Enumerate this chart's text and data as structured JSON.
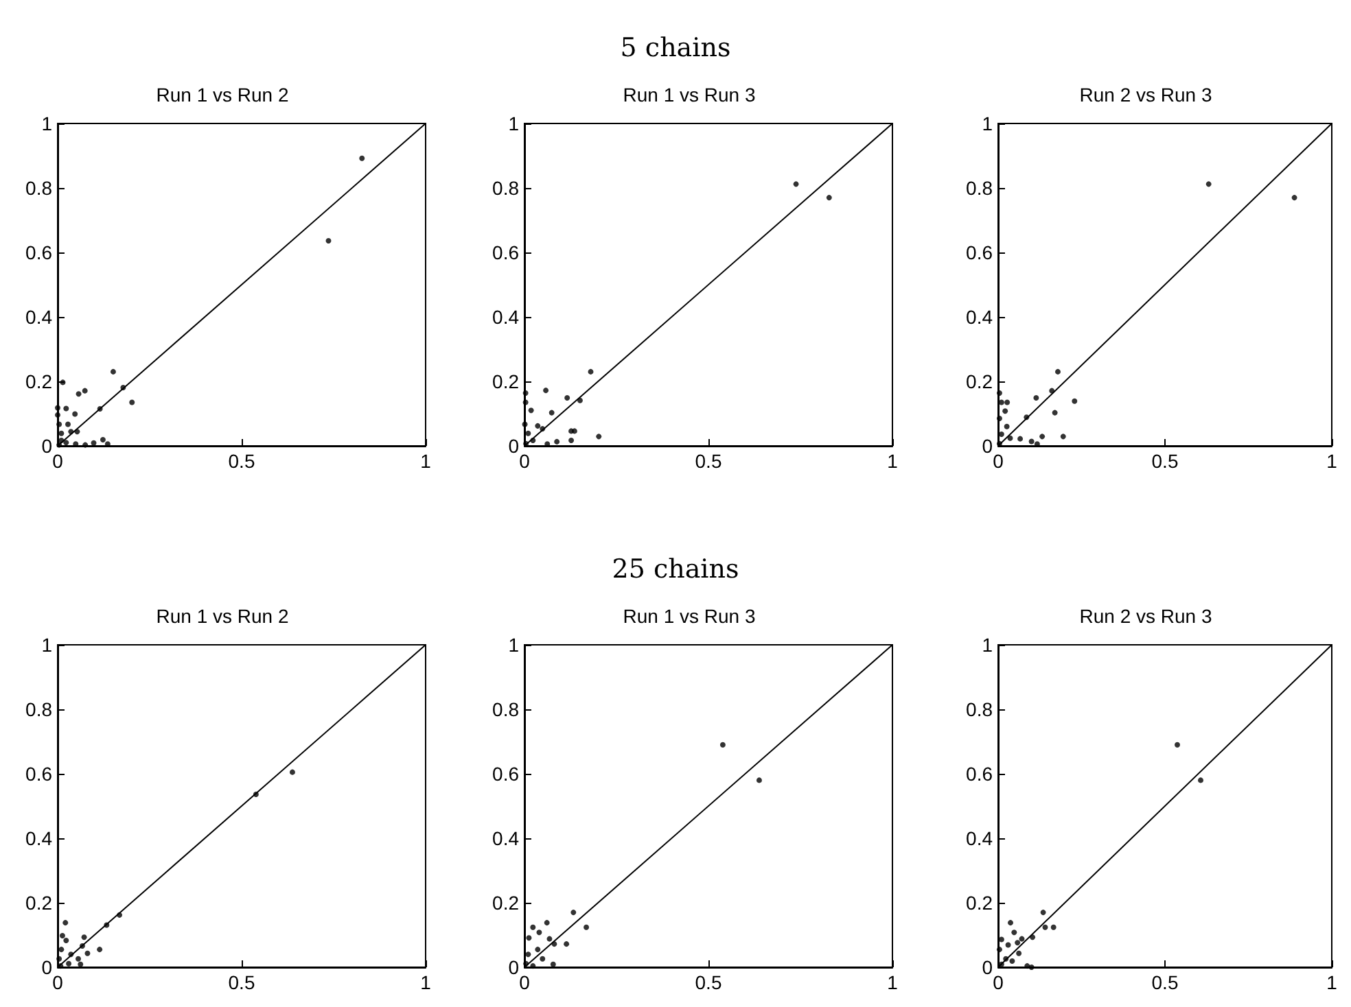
{
  "chart_data": [
    {
      "type": "scatter",
      "title": "Run 1 vs Run 2",
      "annotations": [
        "5 chains"
      ],
      "xlim": [
        0,
        1
      ],
      "xticks": [
        0,
        0.5,
        1
      ],
      "ylim": [
        0,
        1
      ],
      "yticks": [
        0,
        0.2,
        0.4,
        0.6,
        0.8,
        1
      ],
      "marker": "circle",
      "series": [
        {
          "color": "#000000",
          "x": [
            0.827,
            0.736,
            0.151,
            0.178,
            0.202,
            0.115,
            0.014,
            0.057,
            0.074,
            0.023,
            0.047,
            0.028,
            0.053,
            0.036,
            0,
            0,
            0.004,
            0.01,
            0.023,
            0.049,
            0.075,
            0.098,
            0.123,
            0.136,
            0.01,
            0.004
          ],
          "values": [
            0.892,
            0.636,
            0.23,
            0.181,
            0.135,
            0.115,
            0.197,
            0.161,
            0.171,
            0.116,
            0.099,
            0.067,
            0.044,
            0.044,
            0.118,
            0.096,
            0.067,
            0.039,
            0.01,
            0.006,
            0.003,
            0.009,
            0.019,
            0.006,
            0.017,
            0.003
          ]
        },
        {
          "type": "line",
          "color": "#000000",
          "marker": "none",
          "x": [
            0,
            1
          ],
          "values": [
            0,
            1
          ]
        }
      ]
    },
    {
      "type": "scatter",
      "title": "Run 1 vs Run 3",
      "xlim": [
        0,
        1
      ],
      "xticks": [
        0,
        0.5,
        1
      ],
      "ylim": [
        0,
        1
      ],
      "yticks": [
        0,
        0.2,
        0.4,
        0.6,
        0.8,
        1
      ],
      "marker": "circle",
      "series": [
        {
          "color": "#000000",
          "x": [
            0.738,
            0.828,
            0.18,
            0.058,
            0.116,
            0.151,
            0.074,
            0.202,
            0.003,
            0.003,
            0.018,
            0.036,
            0.049,
            0.127,
            0.136,
            0.127,
            0.088,
            0.023,
            0.004,
            0.062,
            0.001,
            0.01
          ],
          "values": [
            0.812,
            0.77,
            0.23,
            0.172,
            0.149,
            0.141,
            0.103,
            0.029,
            0.164,
            0.135,
            0.11,
            0.062,
            0.053,
            0.046,
            0.046,
            0.017,
            0.013,
            0.017,
            0.007,
            0.006,
            0.067,
            0.039
          ]
        },
        {
          "type": "line",
          "color": "#000000",
          "marker": "none",
          "x": [
            0,
            1
          ],
          "values": [
            0,
            1
          ]
        }
      ]
    },
    {
      "type": "scatter",
      "title": "Run 2 vs Run 3",
      "xlim": [
        0,
        1
      ],
      "xticks": [
        0,
        0.5,
        1
      ],
      "ylim": [
        0,
        1
      ],
      "yticks": [
        0,
        0.2,
        0.4,
        0.6,
        0.8,
        1
      ],
      "marker": "circle",
      "series": [
        {
          "color": "#000000",
          "x": [
            0.631,
            0.888,
            0.179,
            0.161,
            0.114,
            0.229,
            0.17,
            0.085,
            0.132,
            0.195,
            0.004,
            0.01,
            0.027,
            0.021,
            0.004,
            0.026,
            0.1,
            0.117,
            0.066,
            0.01,
            0.036,
            0.004
          ],
          "values": [
            0.812,
            0.77,
            0.23,
            0.171,
            0.149,
            0.139,
            0.103,
            0.089,
            0.029,
            0.029,
            0.164,
            0.135,
            0.135,
            0.108,
            0.085,
            0.06,
            0.014,
            0.006,
            0.022,
            0.036,
            0.024,
            0.007
          ]
        },
        {
          "type": "line",
          "color": "#000000",
          "marker": "none",
          "x": [
            0,
            1
          ],
          "values": [
            0,
            1
          ]
        }
      ]
    },
    {
      "type": "scatter",
      "title": "Run 1 vs Run 2",
      "annotations": [
        "25 chains"
      ],
      "xlim": [
        0,
        1
      ],
      "xticks": [
        0,
        0.5,
        1
      ],
      "ylim": [
        0,
        1
      ],
      "yticks": [
        0,
        0.2,
        0.4,
        0.6,
        0.8,
        1
      ],
      "marker": "circle",
      "series": [
        {
          "color": "#000000",
          "x": [
            0.638,
            0.539,
            0.168,
            0.133,
            0.114,
            0.021,
            0.013,
            0.023,
            0.072,
            0.067,
            0.081,
            0.036,
            0.056,
            0.01,
            0.004,
            0.03,
            0.062,
            0.008
          ],
          "values": [
            0.605,
            0.536,
            0.162,
            0.131,
            0.055,
            0.138,
            0.098,
            0.083,
            0.093,
            0.066,
            0.043,
            0.04,
            0.026,
            0.055,
            0.026,
            0.011,
            0.009,
            0.004
          ]
        },
        {
          "type": "line",
          "color": "#000000",
          "marker": "none",
          "x": [
            0,
            1
          ],
          "values": [
            0,
            1
          ]
        }
      ]
    },
    {
      "type": "scatter",
      "title": "Run 1 vs Run 3",
      "xlim": [
        0,
        1
      ],
      "xticks": [
        0,
        0.5,
        1
      ],
      "ylim": [
        0,
        1
      ],
      "yticks": [
        0,
        0.2,
        0.4,
        0.6,
        0.8,
        1
      ],
      "marker": "circle",
      "series": [
        {
          "color": "#000000",
          "x": [
            0.539,
            0.638,
            0.133,
            0.168,
            0.061,
            0.023,
            0.04,
            0.012,
            0.068,
            0.081,
            0.114,
            0.036,
            0.01,
            0.049,
            0.078,
            0.004,
            0.023
          ],
          "values": [
            0.69,
            0.58,
            0.17,
            0.124,
            0.138,
            0.124,
            0.108,
            0.091,
            0.088,
            0.072,
            0.072,
            0.055,
            0.04,
            0.026,
            0.009,
            0.011,
            0.004
          ]
        },
        {
          "type": "line",
          "color": "#000000",
          "marker": "none",
          "x": [
            0,
            1
          ],
          "values": [
            0,
            1
          ]
        }
      ]
    },
    {
      "type": "scatter",
      "title": "Run 2 vs Run 3",
      "xlim": [
        0,
        1
      ],
      "xticks": [
        0,
        0.5,
        1
      ],
      "ylim": [
        0,
        1
      ],
      "yticks": [
        0,
        0.2,
        0.4,
        0.6,
        0.8,
        1
      ],
      "marker": "circle",
      "series": [
        {
          "color": "#000000",
          "x": [
            0.537,
            0.607,
            0.135,
            0.141,
            0.166,
            0.103,
            0.037,
            0.048,
            0.01,
            0.058,
            0.071,
            0.03,
            0.062,
            0.087,
            0.1,
            0.004,
            0.023,
            0.042,
            0.01
          ],
          "values": [
            0.69,
            0.58,
            0.17,
            0.124,
            0.124,
            0.093,
            0.138,
            0.108,
            0.086,
            0.076,
            0.088,
            0.069,
            0.043,
            0.004,
            0,
            0.055,
            0.026,
            0.019,
            0.009
          ]
        },
        {
          "type": "line",
          "color": "#000000",
          "marker": "none",
          "x": [
            0,
            1
          ],
          "values": [
            0,
            1
          ]
        }
      ]
    }
  ]
}
